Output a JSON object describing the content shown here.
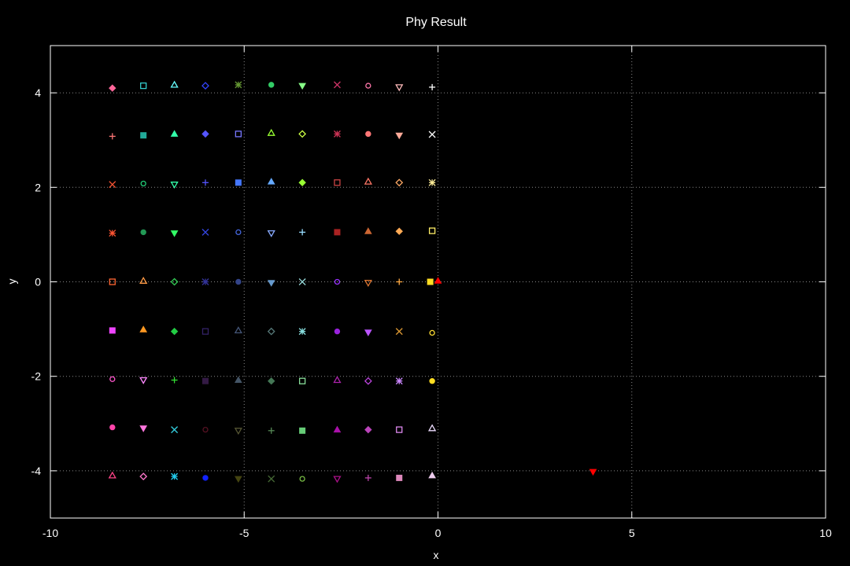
{
  "chart_data": {
    "type": "scatter",
    "title": "Phy Result",
    "xlabel": "x",
    "ylabel": "y",
    "xlim": [
      -10,
      10
    ],
    "ylim": [
      -5,
      5
    ],
    "xticks": [
      -10,
      -5,
      0,
      5,
      10
    ],
    "yticks": [
      -4,
      -2,
      0,
      2,
      4
    ],
    "grid": true,
    "background": "#000000",
    "foreground": "#ffffff",
    "points": [
      {
        "x": -8.4,
        "y": 4.1,
        "marker": "diamond-filled",
        "color": "#ff6699"
      },
      {
        "x": -7.6,
        "y": 4.15,
        "marker": "square-open",
        "color": "#33cccc"
      },
      {
        "x": -6.8,
        "y": 4.17,
        "marker": "triangle-open",
        "color": "#66ffff"
      },
      {
        "x": -6.0,
        "y": 4.15,
        "marker": "diamond-open",
        "color": "#3344ff"
      },
      {
        "x": -5.15,
        "y": 4.17,
        "marker": "star",
        "color": "#669933"
      },
      {
        "x": -4.3,
        "y": 4.17,
        "marker": "circle-filled",
        "color": "#33cc66"
      },
      {
        "x": -3.5,
        "y": 4.15,
        "marker": "triangle-down-filled",
        "color": "#88ff88"
      },
      {
        "x": -2.6,
        "y": 4.17,
        "marker": "cross",
        "color": "#cc3366"
      },
      {
        "x": -1.8,
        "y": 4.15,
        "marker": "circle-open",
        "color": "#ff77aa"
      },
      {
        "x": -1.0,
        "y": 4.12,
        "marker": "triangle-down-open",
        "color": "#ffbbbb"
      },
      {
        "x": -0.15,
        "y": 4.12,
        "marker": "plus",
        "color": "#ffffff"
      },
      {
        "x": -8.4,
        "y": 3.08,
        "marker": "plus",
        "color": "#ff7777"
      },
      {
        "x": -7.6,
        "y": 3.1,
        "marker": "square-filled",
        "color": "#22aa99"
      },
      {
        "x": -6.8,
        "y": 3.13,
        "marker": "triangle-filled",
        "color": "#33ffaa"
      },
      {
        "x": -6.0,
        "y": 3.13,
        "marker": "diamond-filled",
        "color": "#5555ff"
      },
      {
        "x": -5.15,
        "y": 3.13,
        "marker": "square-open",
        "color": "#7777ff"
      },
      {
        "x": -4.3,
        "y": 3.15,
        "marker": "triangle-open",
        "color": "#99ff33"
      },
      {
        "x": -3.5,
        "y": 3.13,
        "marker": "diamond-open",
        "color": "#ccff44"
      },
      {
        "x": -2.6,
        "y": 3.13,
        "marker": "star",
        "color": "#cc3355"
      },
      {
        "x": -1.8,
        "y": 3.13,
        "marker": "circle-filled",
        "color": "#ff7777"
      },
      {
        "x": -1.0,
        "y": 3.1,
        "marker": "triangle-down-filled",
        "color": "#ffaa99"
      },
      {
        "x": -0.15,
        "y": 3.12,
        "marker": "cross",
        "color": "#ffffff"
      },
      {
        "x": -8.4,
        "y": 2.06,
        "marker": "cross",
        "color": "#ff5533"
      },
      {
        "x": -7.6,
        "y": 2.08,
        "marker": "circle-open",
        "color": "#22cc77"
      },
      {
        "x": -6.8,
        "y": 2.06,
        "marker": "triangle-down-open",
        "color": "#33ffaa"
      },
      {
        "x": -6.0,
        "y": 2.1,
        "marker": "plus",
        "color": "#5555ff"
      },
      {
        "x": -5.15,
        "y": 2.1,
        "marker": "square-filled",
        "color": "#4477ff"
      },
      {
        "x": -4.3,
        "y": 2.12,
        "marker": "triangle-filled",
        "color": "#66aaff"
      },
      {
        "x": -3.5,
        "y": 2.1,
        "marker": "diamond-filled",
        "color": "#99ff33"
      },
      {
        "x": -2.6,
        "y": 2.1,
        "marker": "square-open",
        "color": "#cc4444"
      },
      {
        "x": -1.8,
        "y": 2.12,
        "marker": "triangle-open",
        "color": "#ff7766"
      },
      {
        "x": -1.0,
        "y": 2.1,
        "marker": "diamond-open",
        "color": "#ffaa66"
      },
      {
        "x": -0.15,
        "y": 2.1,
        "marker": "star",
        "color": "#ffee99"
      },
      {
        "x": -8.4,
        "y": 1.03,
        "marker": "star",
        "color": "#ff5533"
      },
      {
        "x": -7.6,
        "y": 1.05,
        "marker": "circle-filled",
        "color": "#229955"
      },
      {
        "x": -6.8,
        "y": 1.03,
        "marker": "triangle-down-filled",
        "color": "#33ff66"
      },
      {
        "x": -6.0,
        "y": 1.05,
        "marker": "cross",
        "color": "#3344dd"
      },
      {
        "x": -5.15,
        "y": 1.05,
        "marker": "circle-open",
        "color": "#4466dd"
      },
      {
        "x": -4.3,
        "y": 1.03,
        "marker": "triangle-down-open",
        "color": "#88aaff"
      },
      {
        "x": -3.5,
        "y": 1.05,
        "marker": "plus",
        "color": "#99ddff"
      },
      {
        "x": -2.6,
        "y": 1.05,
        "marker": "square-filled",
        "color": "#aa2222"
      },
      {
        "x": -1.8,
        "y": 1.07,
        "marker": "triangle-filled",
        "color": "#cc6633"
      },
      {
        "x": -1.0,
        "y": 1.07,
        "marker": "diamond-filled",
        "color": "#ffaa55"
      },
      {
        "x": -0.15,
        "y": 1.08,
        "marker": "square-open",
        "color": "#ffee66"
      },
      {
        "x": -8.4,
        "y": 0.0,
        "marker": "square-open",
        "color": "#ff6633"
      },
      {
        "x": -7.6,
        "y": 0.02,
        "marker": "triangle-open",
        "color": "#ff9944"
      },
      {
        "x": -6.8,
        "y": 0.0,
        "marker": "diamond-open",
        "color": "#33cc55"
      },
      {
        "x": -6.0,
        "y": 0.0,
        "marker": "star",
        "color": "#333399"
      },
      {
        "x": -5.15,
        "y": 0.0,
        "marker": "circle-filled",
        "color": "#334488"
      },
      {
        "x": -4.3,
        "y": -0.02,
        "marker": "triangle-down-filled",
        "color": "#6699cc"
      },
      {
        "x": -3.5,
        "y": 0.0,
        "marker": "cross",
        "color": "#99dddd"
      },
      {
        "x": -2.6,
        "y": 0.0,
        "marker": "circle-open",
        "color": "#9933ff"
      },
      {
        "x": -1.8,
        "y": -0.02,
        "marker": "triangle-down-open",
        "color": "#dd7733"
      },
      {
        "x": -1.0,
        "y": 0.0,
        "marker": "plus",
        "color": "#ffaa44"
      },
      {
        "x": -0.2,
        "y": 0.0,
        "marker": "square-filled",
        "color": "#ffdd22"
      },
      {
        "x": 0.0,
        "y": 0.02,
        "marker": "triangle-filled",
        "color": "#ff0000"
      },
      {
        "x": -8.4,
        "y": -1.03,
        "marker": "square-filled",
        "color": "#ee44ff"
      },
      {
        "x": -7.6,
        "y": -1.01,
        "marker": "triangle-filled",
        "color": "#ff9922"
      },
      {
        "x": -6.8,
        "y": -1.05,
        "marker": "diamond-filled",
        "color": "#22cc44"
      },
      {
        "x": -6.0,
        "y": -1.05,
        "marker": "square-open",
        "color": "#332266"
      },
      {
        "x": -5.15,
        "y": -1.03,
        "marker": "triangle-open",
        "color": "#445577"
      },
      {
        "x": -4.3,
        "y": -1.05,
        "marker": "diamond-open",
        "color": "#557777"
      },
      {
        "x": -3.5,
        "y": -1.05,
        "marker": "star",
        "color": "#88dddd"
      },
      {
        "x": -2.6,
        "y": -1.05,
        "marker": "circle-filled",
        "color": "#9922dd"
      },
      {
        "x": -1.8,
        "y": -1.07,
        "marker": "triangle-down-filled",
        "color": "#bb55ff"
      },
      {
        "x": -1.0,
        "y": -1.05,
        "marker": "cross",
        "color": "#dd9933"
      },
      {
        "x": -0.15,
        "y": -1.08,
        "marker": "circle-open",
        "color": "#ffdd33"
      },
      {
        "x": -8.4,
        "y": -2.06,
        "marker": "circle-open",
        "color": "#ff55cc"
      },
      {
        "x": -7.6,
        "y": -2.08,
        "marker": "triangle-down-open",
        "color": "#ff88ff"
      },
      {
        "x": -6.8,
        "y": -2.08,
        "marker": "plus",
        "color": "#33dd33"
      },
      {
        "x": -6.0,
        "y": -2.1,
        "marker": "square-filled",
        "color": "#331a44"
      },
      {
        "x": -5.15,
        "y": -2.08,
        "marker": "triangle-filled",
        "color": "#445566"
      },
      {
        "x": -4.3,
        "y": -2.1,
        "marker": "diamond-filled",
        "color": "#447755"
      },
      {
        "x": -3.5,
        "y": -2.1,
        "marker": "square-open",
        "color": "#88dd99"
      },
      {
        "x": -2.6,
        "y": -2.08,
        "marker": "triangle-open",
        "color": "#aa22aa"
      },
      {
        "x": -1.8,
        "y": -2.1,
        "marker": "diamond-open",
        "color": "#bb44dd"
      },
      {
        "x": -1.0,
        "y": -2.1,
        "marker": "star",
        "color": "#cc88ff"
      },
      {
        "x": -0.15,
        "y": -2.1,
        "marker": "circle-filled",
        "color": "#ffdd22"
      },
      {
        "x": -8.4,
        "y": -3.08,
        "marker": "circle-filled",
        "color": "#ff44aa"
      },
      {
        "x": -7.6,
        "y": -3.1,
        "marker": "triangle-down-filled",
        "color": "#ff77dd"
      },
      {
        "x": -6.8,
        "y": -3.13,
        "marker": "cross",
        "color": "#33ccdd"
      },
      {
        "x": -6.0,
        "y": -3.13,
        "marker": "circle-open",
        "color": "#551122"
      },
      {
        "x": -5.15,
        "y": -3.15,
        "marker": "triangle-down-open",
        "color": "#555533"
      },
      {
        "x": -4.3,
        "y": -3.15,
        "marker": "plus",
        "color": "#558855"
      },
      {
        "x": -3.5,
        "y": -3.15,
        "marker": "square-filled",
        "color": "#66cc77"
      },
      {
        "x": -2.6,
        "y": -3.13,
        "marker": "triangle-filled",
        "color": "#aa11aa"
      },
      {
        "x": -1.8,
        "y": -3.13,
        "marker": "diamond-filled",
        "color": "#bb44bb"
      },
      {
        "x": -1.0,
        "y": -3.13,
        "marker": "square-open",
        "color": "#dd88ee"
      },
      {
        "x": -0.15,
        "y": -3.1,
        "marker": "triangle-open",
        "color": "#eeddff"
      },
      {
        "x": -8.4,
        "y": -4.1,
        "marker": "triangle-open",
        "color": "#ff4488"
      },
      {
        "x": -7.6,
        "y": -4.12,
        "marker": "diamond-open",
        "color": "#ff77cc"
      },
      {
        "x": -6.8,
        "y": -4.12,
        "marker": "star",
        "color": "#22ccee"
      },
      {
        "x": -6.0,
        "y": -4.15,
        "marker": "circle-filled",
        "color": "#1122ff"
      },
      {
        "x": -5.15,
        "y": -4.17,
        "marker": "triangle-down-filled",
        "color": "#444411"
      },
      {
        "x": -4.3,
        "y": -4.17,
        "marker": "cross",
        "color": "#446633"
      },
      {
        "x": -3.5,
        "y": -4.17,
        "marker": "circle-open",
        "color": "#77bb44"
      },
      {
        "x": -2.6,
        "y": -4.17,
        "marker": "triangle-down-open",
        "color": "#aa1188"
      },
      {
        "x": -1.8,
        "y": -4.15,
        "marker": "plus",
        "color": "#bb44aa"
      },
      {
        "x": -1.0,
        "y": -4.15,
        "marker": "square-filled",
        "color": "#dd88bb"
      },
      {
        "x": -0.15,
        "y": -4.1,
        "marker": "triangle-filled",
        "color": "#eeccee"
      },
      {
        "x": 4.0,
        "y": -4.02,
        "marker": "triangle-down-filled",
        "color": "#ff0000"
      }
    ]
  }
}
